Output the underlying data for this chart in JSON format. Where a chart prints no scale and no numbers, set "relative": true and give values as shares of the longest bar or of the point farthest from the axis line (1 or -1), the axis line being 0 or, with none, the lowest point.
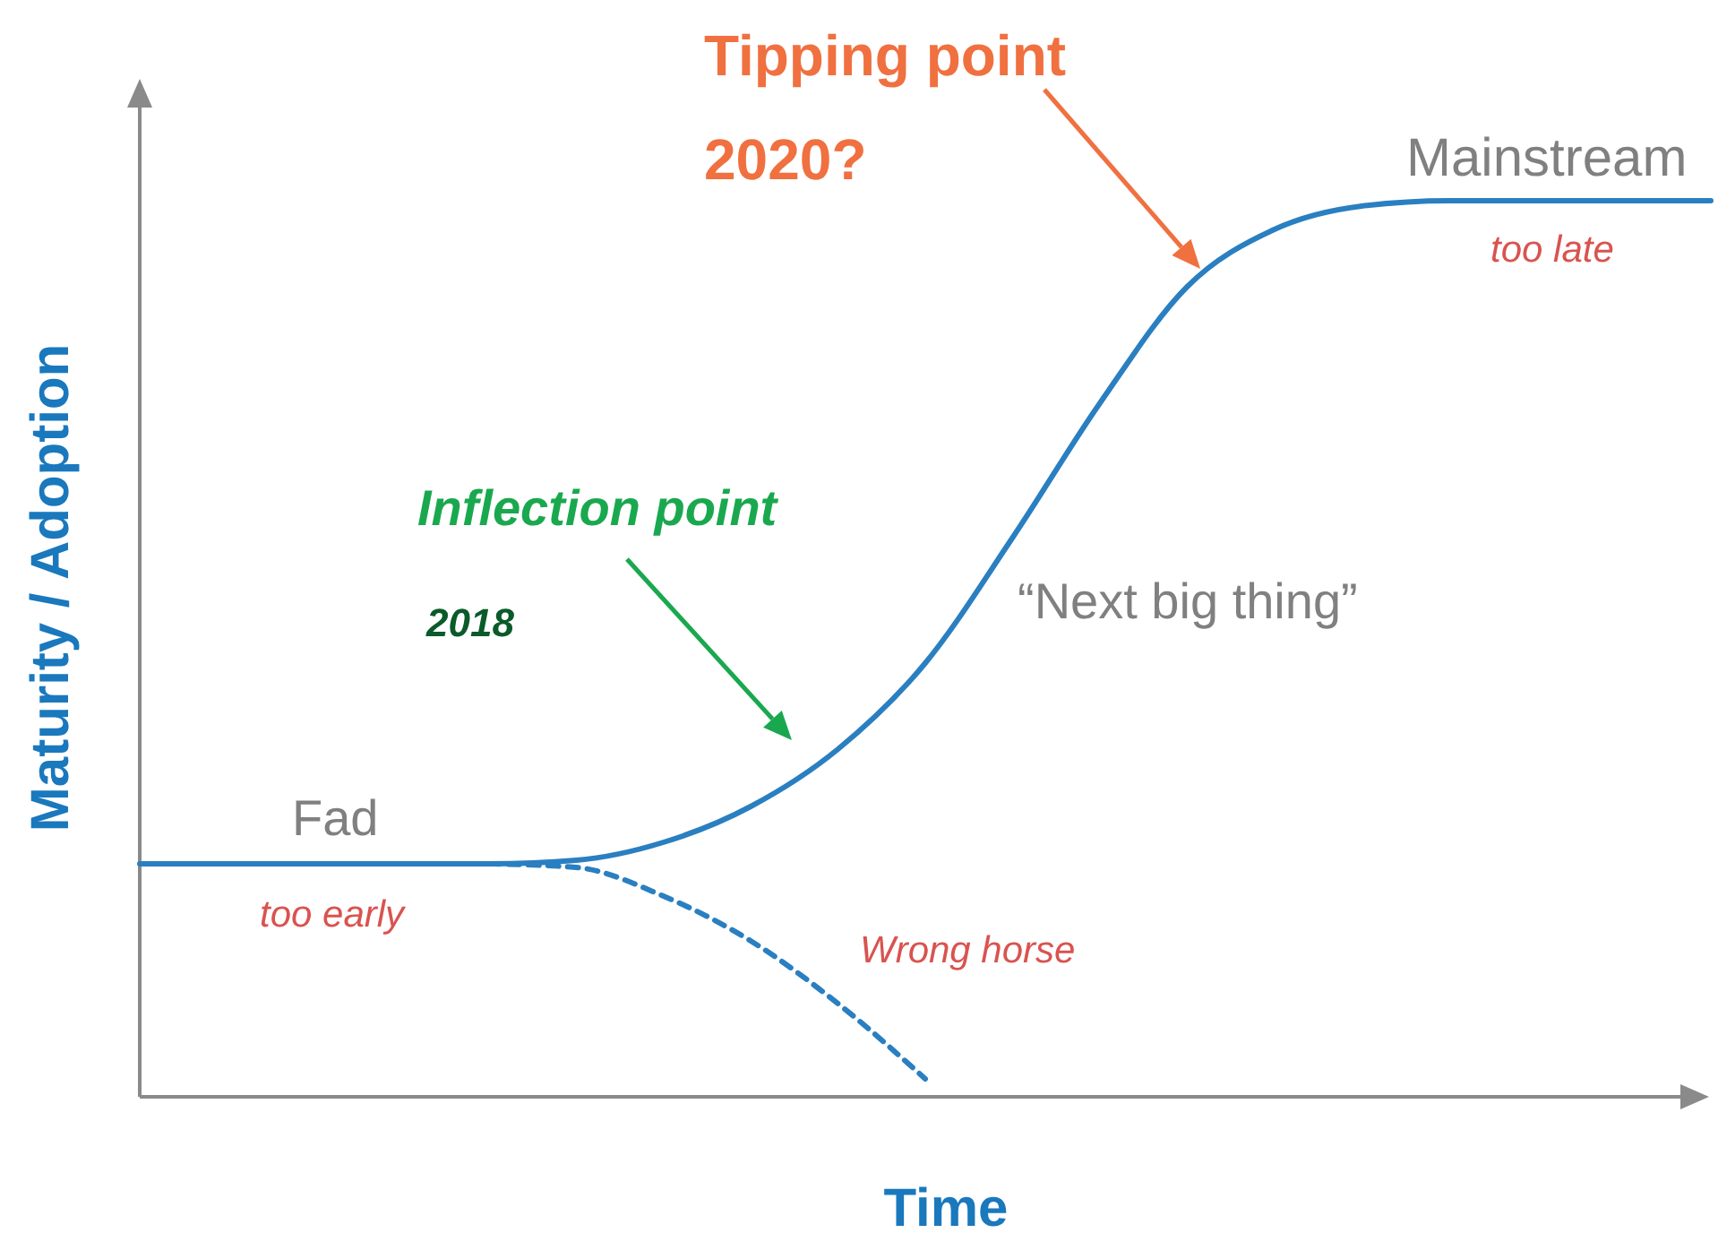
{
  "chart_data": {
    "type": "line",
    "relative": true,
    "xlabel": "Time",
    "ylabel": "Maturity / Adoption",
    "categories": [
      null,
      null,
      null,
      null,
      null,
      null,
      null,
      null,
      null,
      null,
      null,
      null,
      null,
      null,
      null,
      null,
      null,
      null,
      null
    ],
    "series": [
      {
        "color": "#2a7fc1",
        "line_style": "solid",
        "values": [
          0.26,
          0.26,
          0.26,
          0.26,
          0.26,
          0.264,
          0.284,
          0.324,
          0.388,
          0.484,
          0.624,
          0.774,
          0.904,
          0.968,
          0.994,
          1,
          1,
          1,
          1
        ]
      },
      {
        "color": "#2a7fc1",
        "line_style": "dashed",
        "values": [
          null,
          null,
          null,
          null,
          0.26,
          0.256,
          0.224,
          0.174,
          0.104,
          0.02,
          null,
          null,
          null,
          null,
          null,
          null,
          null,
          null,
          null
        ]
      }
    ],
    "annotations": [
      "Tipping point",
      "2020?",
      "Inflection point",
      "2018",
      "Fad",
      "too early",
      "Wrong horse",
      "“Next big thing”",
      "Mainstream",
      "too late"
    ]
  }
}
